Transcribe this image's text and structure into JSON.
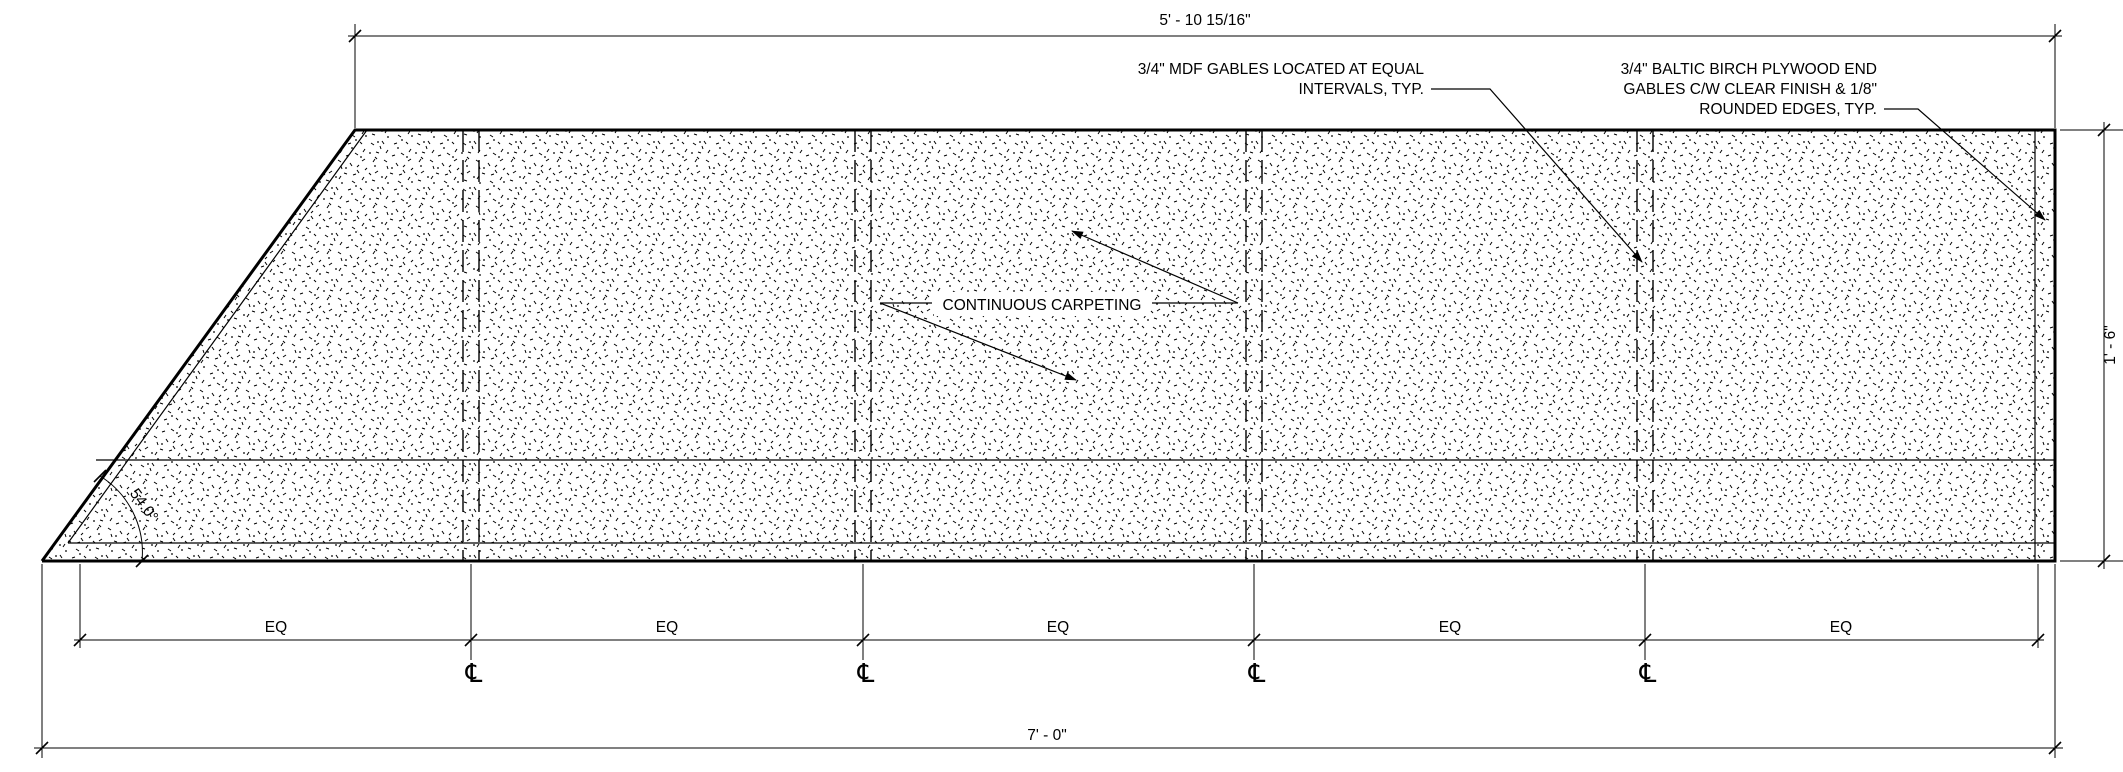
{
  "dimensions": {
    "overall_top": "5' - 10 15/16\"",
    "overall_bottom": "7' - 0\"",
    "height": "1' - 6\"",
    "angle": "54.0°",
    "equal_spacing": [
      "EQ",
      "EQ",
      "EQ",
      "EQ",
      "EQ"
    ]
  },
  "centerline_marks": [
    "℄",
    "℄",
    "℄",
    "℄"
  ],
  "notes": {
    "mdf_gables": [
      "3/4\" MDF GABLES LOCATED AT EQUAL",
      "INTERVALS, TYP."
    ],
    "end_gables": [
      "3/4\" BALTIC BIRCH PLYWOOD END",
      "GABLES C/W CLEAR FINISH & 1/8\"",
      "ROUNDED EDGES, TYP."
    ],
    "carpeting": "CONTINUOUS CARPETING"
  },
  "colors": {
    "ink": "#000000",
    "paper": "#ffffff"
  }
}
